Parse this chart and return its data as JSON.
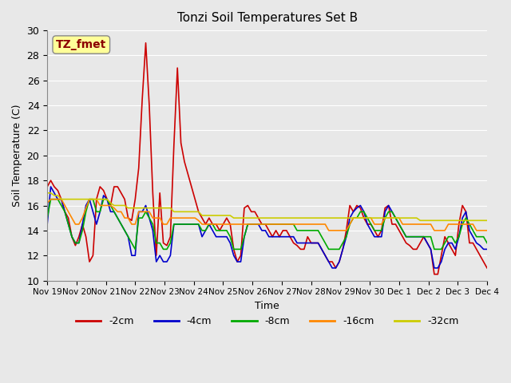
{
  "title": "Tonzi Soil Temperatures Set B",
  "xlabel": "Time",
  "ylabel": "Soil Temperature (C)",
  "ylim": [
    10,
    30
  ],
  "xlim": [
    0,
    15
  ],
  "background_color": "#e8e8e8",
  "annotation_text": "TZ_fmet",
  "annotation_color": "#8b0000",
  "annotation_bg": "#ffff99",
  "series_colors": {
    "-2cm": "#cc0000",
    "-4cm": "#0000cc",
    "-8cm": "#00aa00",
    "-16cm": "#ff8800",
    "-32cm": "#cccc00"
  },
  "x_tick_labels": [
    "Nov 19",
    "Nov 20",
    "Nov 21",
    "Nov 22",
    "Nov 23",
    "Nov 24",
    "Nov 25",
    "Nov 26",
    "Nov 27",
    "Nov 28",
    "Nov 29",
    "Nov 30",
    "Dec 1",
    "Dec 2",
    "Dec 3",
    "Dec 4"
  ],
  "x_ticks": [
    0,
    1,
    2,
    3,
    4,
    5,
    6,
    7,
    8,
    9,
    10,
    11,
    12,
    13,
    14,
    15
  ],
  "series": {
    "-2cm": [
      17.5,
      18.0,
      17.5,
      17.2,
      16.5,
      15.5,
      15.0,
      13.5,
      12.8,
      13.5,
      14.5,
      13.5,
      11.5,
      12.0,
      16.5,
      17.5,
      17.2,
      16.5,
      16.0,
      17.5,
      17.5,
      17.0,
      16.5,
      15.0,
      14.8,
      16.5,
      19.0,
      24.5,
      29.0,
      24.0,
      17.0,
      12.0,
      17.0,
      13.0,
      12.8,
      13.5,
      20.8,
      27.0,
      21.0,
      19.5,
      18.5,
      17.5,
      16.5,
      15.5,
      15.0,
      14.5,
      15.0,
      14.5,
      14.5,
      14.0,
      14.5,
      15.0,
      14.5,
      12.5,
      11.5,
      12.0,
      15.8,
      16.0,
      15.5,
      15.5,
      15.0,
      14.5,
      14.5,
      14.0,
      13.5,
      14.0,
      13.5,
      14.0,
      14.0,
      13.5,
      13.0,
      12.8,
      12.5,
      12.5,
      13.5,
      13.0,
      13.0,
      13.0,
      12.5,
      12.0,
      11.5,
      11.5,
      11.0,
      11.5,
      12.5,
      14.0,
      16.0,
      15.5,
      16.0,
      15.8,
      15.0,
      14.5,
      14.5,
      14.0,
      13.5,
      14.0,
      15.8,
      16.0,
      14.5,
      14.5,
      14.0,
      13.5,
      13.0,
      12.8,
      12.5,
      12.5,
      13.0,
      13.5,
      13.0,
      12.5,
      10.5,
      10.5,
      12.0,
      13.5,
      13.0,
      12.5,
      12.0,
      14.5,
      16.0,
      15.5,
      13.0,
      13.0,
      12.5,
      12.0,
      11.5,
      11.0
    ],
    "-4cm": [
      14.5,
      17.5,
      17.0,
      16.5,
      16.5,
      15.5,
      14.5,
      13.5,
      13.0,
      13.0,
      14.5,
      16.0,
      16.5,
      15.5,
      14.5,
      15.5,
      16.8,
      16.5,
      15.5,
      15.5,
      15.0,
      14.5,
      14.0,
      13.5,
      12.0,
      12.0,
      15.5,
      15.5,
      16.0,
      15.0,
      14.0,
      11.5,
      12.0,
      11.5,
      11.5,
      12.0,
      14.5,
      14.5,
      14.5,
      14.5,
      14.5,
      14.5,
      14.5,
      14.5,
      13.5,
      14.0,
      14.5,
      14.0,
      13.5,
      13.5,
      13.5,
      13.5,
      13.0,
      12.0,
      11.5,
      11.5,
      13.5,
      14.5,
      14.5,
      14.5,
      14.5,
      14.0,
      14.0,
      13.5,
      13.5,
      13.5,
      13.5,
      13.5,
      13.5,
      13.5,
      13.5,
      13.0,
      13.0,
      13.0,
      13.0,
      13.0,
      13.0,
      13.0,
      12.5,
      12.0,
      11.5,
      11.0,
      11.0,
      11.5,
      12.5,
      13.5,
      15.0,
      15.5,
      15.8,
      16.0,
      15.5,
      14.5,
      14.0,
      13.5,
      13.5,
      13.5,
      15.5,
      16.0,
      15.5,
      15.0,
      14.5,
      14.0,
      13.5,
      13.5,
      13.5,
      13.5,
      13.5,
      13.5,
      13.0,
      12.5,
      11.0,
      11.0,
      11.5,
      12.5,
      13.0,
      13.0,
      12.5,
      13.5,
      15.0,
      15.5,
      14.0,
      13.5,
      13.0,
      12.8,
      12.5,
      12.5
    ],
    "-8cm": [
      15.0,
      16.5,
      16.5,
      16.5,
      16.0,
      15.5,
      14.5,
      13.5,
      13.0,
      13.0,
      14.0,
      15.5,
      16.5,
      16.5,
      15.5,
      15.5,
      16.5,
      16.5,
      16.0,
      15.5,
      15.0,
      14.5,
      14.0,
      13.5,
      13.0,
      12.5,
      15.0,
      15.0,
      15.5,
      15.0,
      14.5,
      13.0,
      13.0,
      12.5,
      12.5,
      13.0,
      14.5,
      14.5,
      14.5,
      14.5,
      14.5,
      14.5,
      14.5,
      14.5,
      14.0,
      14.0,
      14.5,
      14.5,
      14.0,
      14.0,
      14.0,
      14.0,
      13.5,
      12.5,
      12.5,
      12.5,
      13.5,
      14.5,
      14.5,
      14.5,
      14.5,
      14.5,
      14.5,
      14.5,
      14.5,
      14.5,
      14.5,
      14.5,
      14.5,
      14.5,
      14.5,
      14.0,
      14.0,
      14.0,
      14.0,
      14.0,
      14.0,
      14.0,
      13.5,
      13.0,
      12.5,
      12.5,
      12.5,
      12.5,
      13.0,
      13.5,
      14.5,
      15.0,
      15.0,
      15.5,
      15.5,
      15.0,
      14.5,
      14.0,
      14.0,
      14.0,
      15.0,
      15.5,
      15.5,
      15.0,
      14.5,
      14.0,
      13.5,
      13.5,
      13.5,
      13.5,
      13.5,
      13.5,
      13.5,
      13.5,
      12.5,
      12.5,
      12.5,
      13.0,
      13.5,
      13.5,
      13.0,
      13.5,
      14.5,
      15.0,
      14.5,
      14.0,
      13.5,
      13.5,
      13.5,
      13.0
    ],
    "-16cm": [
      16.2,
      16.5,
      16.5,
      16.5,
      16.5,
      16.0,
      15.5,
      15.0,
      14.5,
      14.5,
      15.0,
      15.8,
      16.5,
      16.5,
      16.5,
      16.0,
      16.0,
      16.0,
      16.0,
      15.8,
      15.5,
      15.5,
      15.0,
      15.0,
      14.5,
      14.5,
      15.5,
      15.5,
      15.5,
      15.5,
      15.0,
      15.0,
      15.0,
      14.5,
      14.5,
      15.0,
      15.0,
      15.0,
      15.0,
      15.0,
      15.0,
      15.0,
      15.0,
      14.8,
      14.5,
      14.5,
      14.5,
      14.5,
      14.5,
      14.5,
      14.5,
      14.5,
      14.5,
      14.5,
      14.5,
      14.5,
      14.5,
      14.5,
      14.5,
      14.5,
      14.5,
      14.5,
      14.5,
      14.5,
      14.5,
      14.5,
      14.5,
      14.5,
      14.5,
      14.5,
      14.5,
      14.5,
      14.5,
      14.5,
      14.5,
      14.5,
      14.5,
      14.5,
      14.5,
      14.5,
      14.0,
      14.0,
      14.0,
      14.0,
      14.0,
      14.0,
      14.5,
      15.0,
      15.0,
      15.0,
      15.0,
      15.0,
      15.0,
      14.5,
      14.5,
      14.5,
      15.0,
      15.0,
      15.0,
      15.0,
      15.0,
      14.5,
      14.5,
      14.5,
      14.5,
      14.5,
      14.5,
      14.5,
      14.5,
      14.5,
      14.0,
      14.0,
      14.0,
      14.0,
      14.5,
      14.5,
      14.5,
      14.5,
      14.5,
      14.5,
      14.5,
      14.5,
      14.0,
      14.0,
      14.0,
      14.0
    ],
    "-32cm": [
      17.0,
      17.0,
      16.8,
      16.8,
      16.5,
      16.5,
      16.5,
      16.5,
      16.5,
      16.5,
      16.5,
      16.5,
      16.5,
      16.5,
      16.5,
      16.5,
      16.5,
      16.5,
      16.2,
      16.0,
      16.0,
      16.0,
      16.0,
      15.8,
      15.8,
      15.8,
      15.8,
      15.8,
      15.8,
      15.8,
      15.8,
      15.8,
      15.8,
      15.8,
      15.8,
      15.8,
      15.5,
      15.5,
      15.5,
      15.5,
      15.5,
      15.5,
      15.5,
      15.5,
      15.2,
      15.2,
      15.2,
      15.2,
      15.2,
      15.2,
      15.2,
      15.2,
      15.2,
      15.0,
      15.0,
      15.0,
      15.0,
      15.0,
      15.0,
      15.0,
      15.0,
      15.0,
      15.0,
      15.0,
      15.0,
      15.0,
      15.0,
      15.0,
      15.0,
      15.0,
      15.0,
      15.0,
      15.0,
      15.0,
      15.0,
      15.0,
      15.0,
      15.0,
      15.0,
      15.0,
      15.0,
      15.0,
      15.0,
      15.0,
      15.0,
      15.0,
      15.0,
      15.0,
      15.0,
      15.0,
      15.0,
      15.0,
      15.0,
      15.0,
      15.0,
      15.0,
      15.0,
      15.0,
      15.0,
      15.0,
      15.0,
      15.0,
      15.0,
      15.0,
      15.0,
      15.0,
      14.8,
      14.8,
      14.8,
      14.8,
      14.8,
      14.8,
      14.8,
      14.8,
      14.8,
      14.8,
      14.8,
      14.8,
      14.8,
      14.8,
      14.8,
      14.8,
      14.8,
      14.8,
      14.8,
      14.8
    ]
  }
}
